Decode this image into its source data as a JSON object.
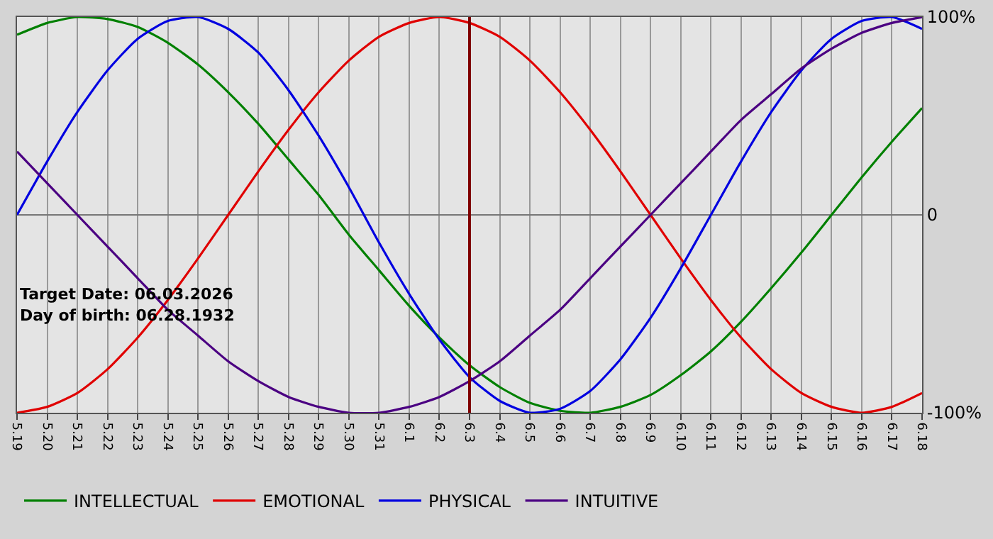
{
  "chart_data": {
    "type": "line",
    "categories": [
      "5.19",
      "5.20",
      "5.21",
      "5.22",
      "5.23",
      "5.24",
      "5.25",
      "5.26",
      "5.27",
      "5.28",
      "5.29",
      "5.30",
      "5.31",
      "6.1",
      "6.2",
      "6.3",
      "6.4",
      "6.5",
      "6.6",
      "6.7",
      "6.8",
      "6.9",
      "6.10",
      "6.11",
      "6.12",
      "6.13",
      "6.14",
      "6.15",
      "6.16",
      "6.17",
      "6.18"
    ],
    "series": [
      {
        "name": "INTELLECTUAL",
        "color": "#008000",
        "values": [
          91,
          97,
          100,
          99,
          95,
          87,
          76,
          62,
          46,
          28,
          10,
          -10,
          -28,
          -46,
          -62,
          -76,
          -87,
          -95,
          -99,
          -100,
          -97,
          -91,
          -81,
          -69,
          -54,
          -37,
          -19,
          0,
          19,
          37,
          54
        ]
      },
      {
        "name": "EMOTIONAL",
        "color": "#e00000",
        "values": [
          -100,
          -97,
          -90,
          -78,
          -62,
          -43,
          -22,
          0,
          22,
          43,
          62,
          78,
          90,
          97,
          100,
          97,
          90,
          78,
          62,
          43,
          22,
          0,
          -22,
          -43,
          -62,
          -78,
          -90,
          -97,
          -100,
          -97,
          -90
        ]
      },
      {
        "name": "PHYSICAL",
        "color": "#0000e0",
        "values": [
          0,
          27,
          52,
          73,
          89,
          98,
          100,
          94,
          82,
          63,
          40,
          14,
          -14,
          -40,
          -63,
          -82,
          -94,
          -100,
          -98,
          -89,
          -73,
          -52,
          -27,
          0,
          27,
          52,
          73,
          89,
          98,
          100,
          94
        ]
      },
      {
        "name": "INTUITIVE",
        "color": "#4b0082",
        "values": [
          32,
          16,
          0,
          -16,
          -32,
          -48,
          -61,
          -74,
          -84,
          -92,
          -97,
          -100,
          -100,
          -97,
          -92,
          -84,
          -74,
          -61,
          -48,
          -32,
          -16,
          0,
          16,
          32,
          48,
          61,
          74,
          84,
          92,
          97,
          100
        ]
      }
    ],
    "ylim": [
      -100,
      100
    ],
    "yticks": [
      {
        "value": 100,
        "label": "100%"
      },
      0,
      {
        "value": -100,
        "label": "-100%"
      }
    ],
    "ref_lines": [
      {
        "axis": "x",
        "value": "6.3",
        "color": "#800000"
      }
    ],
    "annotations": [
      "Target Date: 06.03.2026",
      "Day of birth: 06.28.1932"
    ],
    "grid": true,
    "legend": "bottom left",
    "marker": "none",
    "line_style": "solid"
  }
}
